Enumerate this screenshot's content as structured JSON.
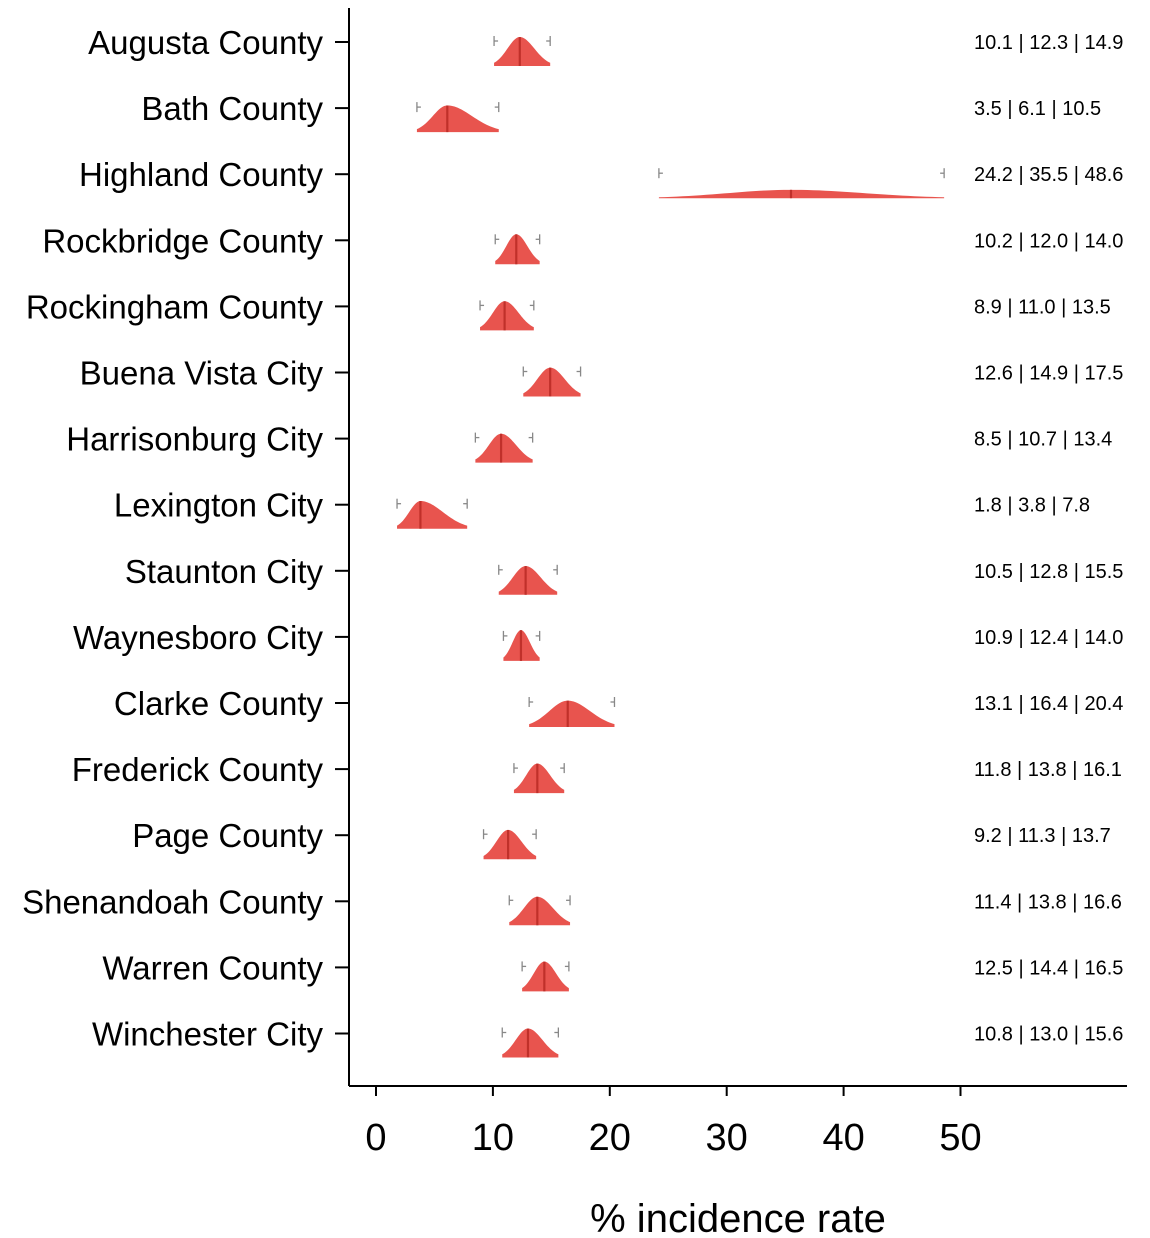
{
  "chart_data": {
    "type": "ridgeline-interval",
    "xlabel": "% incidence rate",
    "xlim": [
      -2.3,
      64
    ],
    "xticks": [
      0,
      10,
      20,
      30,
      40,
      50
    ],
    "grid": false,
    "legend": "none",
    "colors": {
      "fill": "#e8544e",
      "median_line": "#c0302a",
      "whisker": "#888888",
      "axis": "#000000"
    },
    "categories": [
      "Augusta County",
      "Bath County",
      "Highland County",
      "Rockbridge County",
      "Rockingham County",
      "Buena Vista City",
      "Harrisonburg City",
      "Lexington City",
      "Staunton City",
      "Waynesboro City",
      "Clarke County",
      "Frederick County",
      "Page County",
      "Shenandoah County",
      "Warren County",
      "Winchester City"
    ],
    "rows": [
      {
        "label": "Augusta County",
        "low": 10.1,
        "median": 12.3,
        "high": 14.9,
        "annotation": "10.1 | 12.3 | 14.9"
      },
      {
        "label": "Bath County",
        "low": 3.5,
        "median": 6.1,
        "high": 10.5,
        "annotation": "3.5 | 6.1 | 10.5"
      },
      {
        "label": "Highland County",
        "low": 24.2,
        "median": 35.5,
        "high": 48.6,
        "annotation": "24.2 | 35.5 | 48.6"
      },
      {
        "label": "Rockbridge County",
        "low": 10.2,
        "median": 12.0,
        "high": 14.0,
        "annotation": "10.2 | 12.0 | 14.0"
      },
      {
        "label": "Rockingham County",
        "low": 8.9,
        "median": 11.0,
        "high": 13.5,
        "annotation": "8.9 | 11.0 | 13.5"
      },
      {
        "label": "Buena Vista City",
        "low": 12.6,
        "median": 14.9,
        "high": 17.5,
        "annotation": "12.6 | 14.9 | 17.5"
      },
      {
        "label": "Harrisonburg City",
        "low": 8.5,
        "median": 10.7,
        "high": 13.4,
        "annotation": "8.5 | 10.7 | 13.4"
      },
      {
        "label": "Lexington City",
        "low": 1.8,
        "median": 3.8,
        "high": 7.8,
        "annotation": "1.8 | 3.8 | 7.8"
      },
      {
        "label": "Staunton City",
        "low": 10.5,
        "median": 12.8,
        "high": 15.5,
        "annotation": "10.5 | 12.8 | 15.5"
      },
      {
        "label": "Waynesboro City",
        "low": 10.9,
        "median": 12.4,
        "high": 14.0,
        "annotation": "10.9 | 12.4 | 14.0"
      },
      {
        "label": "Clarke County",
        "low": 13.1,
        "median": 16.4,
        "high": 20.4,
        "annotation": "13.1 | 16.4 | 20.4"
      },
      {
        "label": "Frederick County",
        "low": 11.8,
        "median": 13.8,
        "high": 16.1,
        "annotation": "11.8 | 13.8 | 16.1"
      },
      {
        "label": "Page County",
        "low": 9.2,
        "median": 11.3,
        "high": 13.7,
        "annotation": "9.2 | 11.3 | 13.7"
      },
      {
        "label": "Shenandoah County",
        "low": 11.4,
        "median": 13.8,
        "high": 16.6,
        "annotation": "11.4 | 13.8 | 16.6"
      },
      {
        "label": "Warren County",
        "low": 12.5,
        "median": 14.4,
        "high": 16.5,
        "annotation": "12.5 | 14.4 | 16.5"
      },
      {
        "label": "Winchester City",
        "low": 10.8,
        "median": 13.0,
        "high": 15.6,
        "annotation": "10.8 | 13.0 | 15.6"
      }
    ]
  }
}
